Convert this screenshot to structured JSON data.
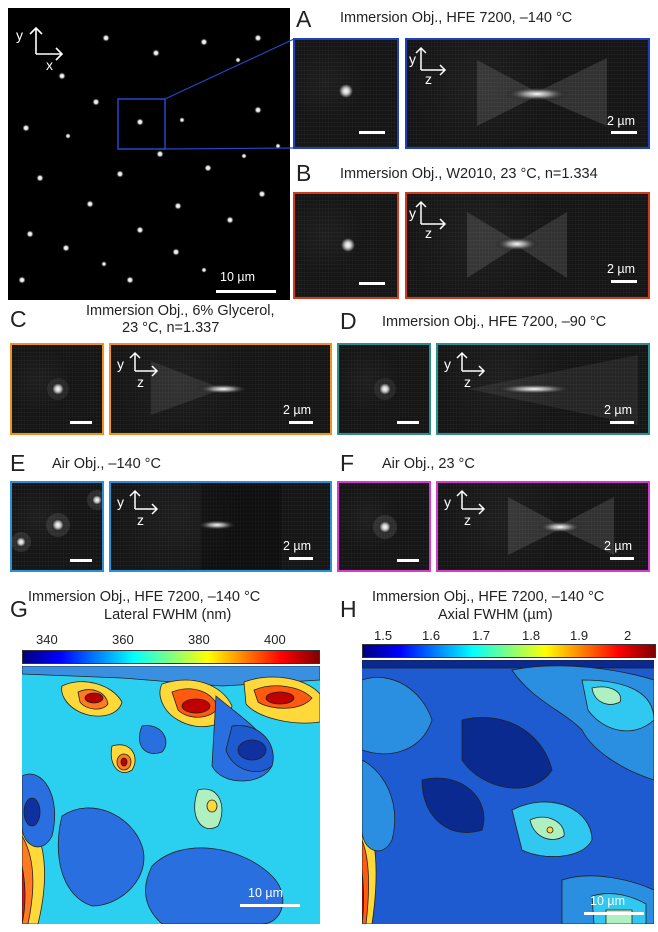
{
  "colors": {
    "A": "#1f3fbf",
    "B": "#d23a1c",
    "C": "#f0921a",
    "D": "#2a8f8f",
    "E": "#2a8fd6",
    "F": "#d63ad0"
  },
  "overview": {
    "scale_label": "10 µm",
    "axis_y": "y",
    "axis_x": "x"
  },
  "panels": {
    "A": {
      "letter": "A",
      "title": "Immersion Obj., HFE 7200, –140 °C",
      "scale_label": "2 µm",
      "axis_y": "y",
      "axis_z": "z"
    },
    "B": {
      "letter": "B",
      "title": "Immersion Obj., W2010, 23 °C, n=1.334",
      "scale_label": "2 µm",
      "axis_y": "y",
      "axis_z": "z"
    },
    "C": {
      "letter": "C",
      "title_line1": "Immersion Obj., 6% Glycerol,",
      "title_line2": "23 °C, n=1.337",
      "scale_label": "2 µm",
      "axis_y": "y",
      "axis_z": "z"
    },
    "D": {
      "letter": "D",
      "title": "Immersion Obj., HFE 7200, –90 °C",
      "scale_label": "2 µm",
      "axis_y": "y",
      "axis_z": "z"
    },
    "E": {
      "letter": "E",
      "title": "Air Obj., –140 °C",
      "scale_label": "2 µm",
      "axis_y": "y",
      "axis_z": "z"
    },
    "F": {
      "letter": "F",
      "title": "Air Obj., 23 °C",
      "scale_label": "2 µm",
      "axis_y": "y",
      "axis_z": "z"
    },
    "G": {
      "letter": "G",
      "title_line1": "Immersion Obj., HFE 7200, –140 °C",
      "title_line2": "Lateral FWHM (nm)",
      "ticks": [
        "340",
        "360",
        "380",
        "400"
      ],
      "scale_label": "10 µm"
    },
    "H": {
      "letter": "H",
      "title_line1": "Immersion Obj., HFE 7200, –140 °C",
      "title_line2": "Axial FWHM (µm)",
      "ticks": [
        "1.5",
        "1.6",
        "1.7",
        "1.8",
        "1.9",
        "2"
      ],
      "scale_label": "10 µm"
    }
  }
}
